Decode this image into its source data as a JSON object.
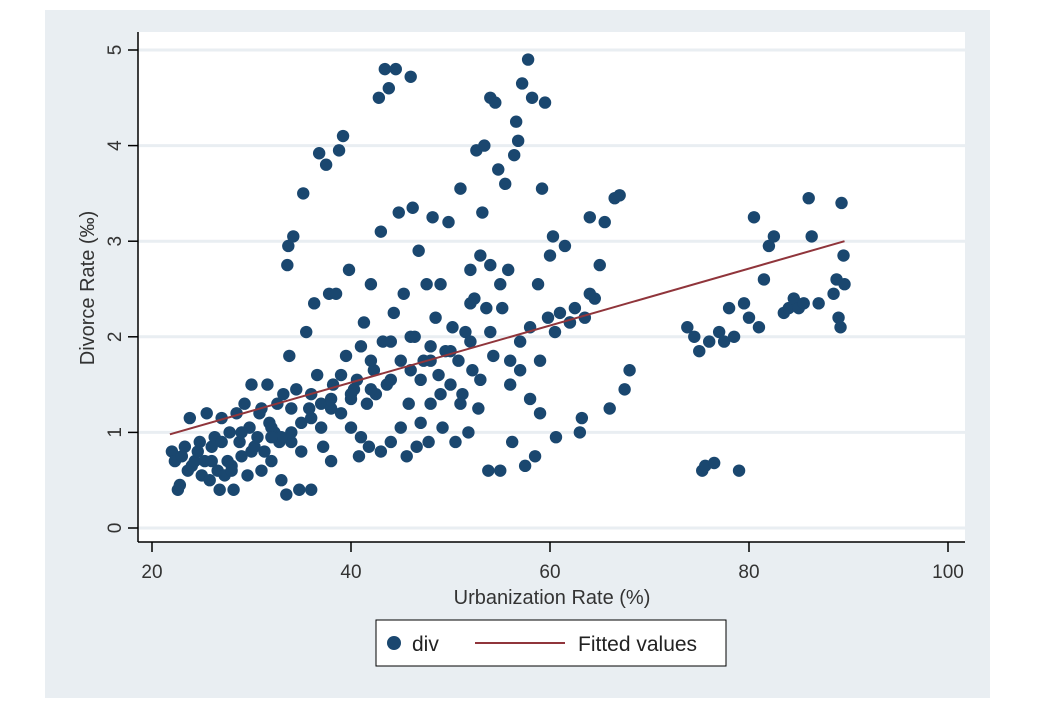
{
  "chart_data": {
    "type": "scatter",
    "title": "",
    "xlabel": "Urbanization Rate (%)",
    "ylabel": "Divorce  Rate (‰)",
    "xlim": [
      20,
      100
    ],
    "ylim": [
      0,
      5
    ],
    "x_ticks": [
      "20",
      "40",
      "60",
      "80",
      "100"
    ],
    "y_ticks": [
      "0",
      "1",
      "2",
      "3",
      "4",
      "5"
    ],
    "grid": "horizontal",
    "legend_position": "bottom",
    "colors": {
      "outer_background": "#e9eef2",
      "plot_background": "#ffffff",
      "gridline": "#e9eef2",
      "points": "#1a476f",
      "fit_line": "#90353b"
    },
    "series": [
      {
        "name": "div",
        "kind": "scatter",
        "points": [
          [
            22,
            0.8
          ],
          [
            22.3,
            0.7
          ],
          [
            22.6,
            0.4
          ],
          [
            22.8,
            0.45
          ],
          [
            23,
            0.75
          ],
          [
            23.3,
            0.85
          ],
          [
            23.6,
            0.6
          ],
          [
            23.8,
            1.15
          ],
          [
            24,
            0.65
          ],
          [
            24.3,
            0.7
          ],
          [
            24.6,
            0.8
          ],
          [
            24.8,
            0.9
          ],
          [
            25,
            0.55
          ],
          [
            25.3,
            0.7
          ],
          [
            25.5,
            1.2
          ],
          [
            25.8,
            0.5
          ],
          [
            26,
            0.85
          ],
          [
            26.3,
            0.95
          ],
          [
            26.6,
            0.6
          ],
          [
            26.8,
            0.4
          ],
          [
            27,
            1.15
          ],
          [
            27.3,
            0.55
          ],
          [
            27.6,
            0.7
          ],
          [
            27.8,
            1.0
          ],
          [
            28,
            0.65
          ],
          [
            28.2,
            0.4
          ],
          [
            28.5,
            1.2
          ],
          [
            28.8,
            0.9
          ],
          [
            29,
            0.75
          ],
          [
            29.3,
            1.3
          ],
          [
            29.6,
            0.55
          ],
          [
            29.8,
            1.05
          ],
          [
            30,
            1.5
          ],
          [
            30.3,
            0.85
          ],
          [
            30.6,
            0.95
          ],
          [
            30.8,
            1.2
          ],
          [
            31,
            0.6
          ],
          [
            31.3,
            0.8
          ],
          [
            31.6,
            1.5
          ],
          [
            31.8,
            1.1
          ],
          [
            32,
            0.7
          ],
          [
            32.3,
            1.0
          ],
          [
            32.6,
            1.3
          ],
          [
            32.8,
            0.9
          ],
          [
            33,
            0.5
          ],
          [
            33.2,
            1.4
          ],
          [
            33.5,
            0.35
          ],
          [
            33.6,
            2.75
          ],
          [
            33.7,
            2.95
          ],
          [
            33.8,
            1.8
          ],
          [
            34,
            0.9
          ],
          [
            34.2,
            3.05
          ],
          [
            34.5,
            1.45
          ],
          [
            34.8,
            0.4
          ],
          [
            35,
            1.1
          ],
          [
            35.2,
            3.5
          ],
          [
            35.5,
            2.05
          ],
          [
            35.8,
            1.25
          ],
          [
            36,
            0.4
          ],
          [
            36.3,
            2.35
          ],
          [
            36.6,
            1.6
          ],
          [
            36.8,
            3.92
          ],
          [
            37,
            1.3
          ],
          [
            37.2,
            0.85
          ],
          [
            37.5,
            3.8
          ],
          [
            37.8,
            2.45
          ],
          [
            38,
            0.7
          ],
          [
            38.2,
            1.5
          ],
          [
            38.5,
            2.45
          ],
          [
            38.8,
            3.95
          ],
          [
            39,
            1.2
          ],
          [
            39.2,
            4.1
          ],
          [
            39.5,
            1.8
          ],
          [
            39.8,
            2.7
          ],
          [
            40,
            1.05
          ],
          [
            40.3,
            1.45
          ],
          [
            40.6,
            1.55
          ],
          [
            40.8,
            0.75
          ],
          [
            41,
            1.9
          ],
          [
            41.3,
            2.15
          ],
          [
            41.6,
            1.3
          ],
          [
            41.8,
            0.85
          ],
          [
            42,
            2.55
          ],
          [
            42.3,
            1.65
          ],
          [
            42.5,
            1.4
          ],
          [
            42.8,
            4.5
          ],
          [
            43,
            3.1
          ],
          [
            43.2,
            1.95
          ],
          [
            43.4,
            4.8
          ],
          [
            43.6,
            1.5
          ],
          [
            43.8,
            4.6
          ],
          [
            44,
            0.9
          ],
          [
            44.3,
            2.25
          ],
          [
            44.5,
            4.8
          ],
          [
            44.8,
            3.3
          ],
          [
            45,
            1.75
          ],
          [
            45.3,
            2.45
          ],
          [
            45.6,
            0.75
          ],
          [
            45.8,
            1.3
          ],
          [
            46,
            4.72
          ],
          [
            46.2,
            3.35
          ],
          [
            46.4,
            2.0
          ],
          [
            46.6,
            0.85
          ],
          [
            46.8,
            2.9
          ],
          [
            47,
            1.55
          ],
          [
            47.3,
            1.75
          ],
          [
            47.6,
            2.55
          ],
          [
            47.8,
            0.9
          ],
          [
            48,
            1.3
          ],
          [
            48.2,
            3.25
          ],
          [
            48.5,
            2.2
          ],
          [
            48.8,
            1.6
          ],
          [
            49,
            2.55
          ],
          [
            49.2,
            1.05
          ],
          [
            49.5,
            1.85
          ],
          [
            49.8,
            3.2
          ],
          [
            50,
            1.5
          ],
          [
            50.2,
            2.1
          ],
          [
            50.5,
            0.9
          ],
          [
            50.8,
            1.75
          ],
          [
            51,
            3.55
          ],
          [
            51.2,
            1.4
          ],
          [
            51.5,
            2.05
          ],
          [
            51.8,
            1.0
          ],
          [
            52,
            2.7
          ],
          [
            52.2,
            1.65
          ],
          [
            52.4,
            2.4
          ],
          [
            52.6,
            3.95
          ],
          [
            52.8,
            1.25
          ],
          [
            53,
            2.85
          ],
          [
            53.2,
            3.3
          ],
          [
            53.4,
            4.0
          ],
          [
            53.6,
            2.3
          ],
          [
            53.8,
            0.6
          ],
          [
            54,
            4.5
          ],
          [
            54.3,
            1.8
          ],
          [
            54.5,
            4.45
          ],
          [
            54.8,
            3.75
          ],
          [
            55,
            0.6
          ],
          [
            55.2,
            2.3
          ],
          [
            55.5,
            3.6
          ],
          [
            55.8,
            2.7
          ],
          [
            56,
            1.5
          ],
          [
            56.2,
            0.9
          ],
          [
            56.4,
            3.9
          ],
          [
            56.6,
            4.25
          ],
          [
            56.8,
            4.05
          ],
          [
            57,
            1.65
          ],
          [
            57.2,
            4.65
          ],
          [
            57.5,
            0.65
          ],
          [
            57.8,
            4.9
          ],
          [
            58,
            2.1
          ],
          [
            58.2,
            4.5
          ],
          [
            58.5,
            0.75
          ],
          [
            58.8,
            2.55
          ],
          [
            59,
            1.2
          ],
          [
            59.2,
            3.55
          ],
          [
            59.5,
            4.45
          ],
          [
            59.8,
            2.2
          ],
          [
            60,
            2.85
          ],
          [
            60.3,
            3.05
          ],
          [
            60.6,
            0.95
          ],
          [
            61,
            2.25
          ],
          [
            61.5,
            2.95
          ],
          [
            62,
            2.15
          ],
          [
            62.5,
            2.3
          ],
          [
            63,
            1.0
          ],
          [
            63.2,
            1.15
          ],
          [
            63.5,
            2.2
          ],
          [
            64,
            3.25
          ],
          [
            64.5,
            2.4
          ],
          [
            65,
            2.75
          ],
          [
            65.5,
            3.2
          ],
          [
            66,
            1.25
          ],
          [
            66.5,
            3.45
          ],
          [
            67,
            3.48
          ],
          [
            67.5,
            1.45
          ],
          [
            68,
            1.65
          ],
          [
            73.8,
            2.1
          ],
          [
            74.5,
            2.0
          ],
          [
            75,
            1.85
          ],
          [
            75.3,
            0.6
          ],
          [
            75.6,
            0.65
          ],
          [
            76,
            1.95
          ],
          [
            76.5,
            0.68
          ],
          [
            77,
            2.05
          ],
          [
            77.5,
            1.95
          ],
          [
            78,
            2.3
          ],
          [
            78.5,
            2.0
          ],
          [
            79,
            0.6
          ],
          [
            79.5,
            2.35
          ],
          [
            80,
            2.2
          ],
          [
            80.5,
            3.25
          ],
          [
            81,
            2.1
          ],
          [
            81.5,
            2.6
          ],
          [
            82,
            2.95
          ],
          [
            82.5,
            3.05
          ],
          [
            83.5,
            2.25
          ],
          [
            84,
            2.3
          ],
          [
            84.5,
            2.4
          ],
          [
            85,
            2.3
          ],
          [
            85.5,
            2.35
          ],
          [
            86,
            3.45
          ],
          [
            86.3,
            3.05
          ],
          [
            87,
            2.35
          ],
          [
            88.5,
            2.45
          ],
          [
            88.8,
            2.6
          ],
          [
            89,
            2.2
          ],
          [
            89.2,
            2.1
          ],
          [
            89.3,
            3.4
          ],
          [
            89.5,
            2.85
          ],
          [
            89.6,
            2.55
          ],
          [
            26,
            0.7
          ],
          [
            28,
            0.6
          ],
          [
            30,
            0.8
          ],
          [
            32,
            1.05
          ],
          [
            34,
            1.0
          ],
          [
            36,
            1.15
          ],
          [
            38,
            1.35
          ],
          [
            40,
            1.35
          ],
          [
            42,
            1.45
          ],
          [
            44,
            1.55
          ],
          [
            46,
            1.65
          ],
          [
            48,
            1.75
          ],
          [
            50,
            1.85
          ],
          [
            52,
            1.95
          ],
          [
            54,
            2.05
          ],
          [
            56,
            1.75
          ],
          [
            58,
            1.35
          ],
          [
            31,
            1.25
          ],
          [
            35,
            0.8
          ],
          [
            39,
            1.6
          ],
          [
            43,
            0.8
          ],
          [
            47,
            1.1
          ],
          [
            51,
            1.3
          ],
          [
            55,
            2.55
          ],
          [
            59,
            1.75
          ],
          [
            37,
            1.05
          ],
          [
            41,
            0.95
          ],
          [
            45,
            1.05
          ],
          [
            49,
            1.4
          ],
          [
            53,
            1.55
          ],
          [
            57,
            1.95
          ],
          [
            27,
            0.9
          ],
          [
            29,
            1.0
          ],
          [
            33,
            0.95
          ],
          [
            60.5,
            2.05
          ],
          [
            62,
            2.15
          ],
          [
            64,
            2.45
          ],
          [
            48,
            1.9
          ],
          [
            52,
            2.35
          ],
          [
            54,
            2.75
          ],
          [
            46,
            2.0
          ],
          [
            44,
            1.95
          ],
          [
            42,
            1.75
          ],
          [
            40,
            1.4
          ],
          [
            38,
            1.25
          ],
          [
            36,
            1.4
          ],
          [
            34,
            1.25
          ],
          [
            32,
            0.95
          ]
        ]
      },
      {
        "name": "Fitted values",
        "kind": "line",
        "x": [
          21.8,
          89.6
        ],
        "y": [
          0.98,
          3.0
        ]
      }
    ]
  },
  "legend": {
    "items": [
      {
        "label": "div"
      },
      {
        "label": "Fitted values"
      }
    ]
  }
}
